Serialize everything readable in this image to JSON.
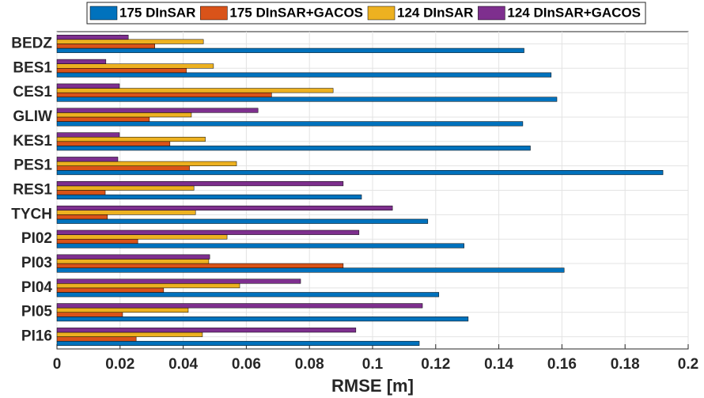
{
  "chart_data": {
    "type": "hbar",
    "xlabel": "RMSE [m]",
    "categories": [
      "BEDZ",
      "BES1",
      "CES1",
      "GLIW",
      "KES1",
      "PES1",
      "RES1",
      "TYCH",
      "PI02",
      "PI03",
      "PI04",
      "PI05",
      "PI16"
    ],
    "series": [
      {
        "name": "175 DInSAR",
        "color": "#0072bd",
        "values": [
          0.148,
          0.1566,
          0.1584,
          0.1476,
          0.15,
          0.192,
          0.0965,
          0.1175,
          0.129,
          0.1607,
          0.121,
          0.1303,
          0.1148
        ]
      },
      {
        "name": "175 DInSAR+GACOS",
        "color": "#d95319",
        "values": [
          0.031,
          0.041,
          0.068,
          0.0293,
          0.0358,
          0.042,
          0.0153,
          0.016,
          0.0256,
          0.0907,
          0.0338,
          0.0208,
          0.0251
        ]
      },
      {
        "name": "124 DInSAR",
        "color": "#edb120",
        "values": [
          0.0464,
          0.0496,
          0.0875,
          0.0426,
          0.047,
          0.0569,
          0.0434,
          0.0439,
          0.0539,
          0.0481,
          0.0579,
          0.0416,
          0.0461
        ]
      },
      {
        "name": "124 DInSAR+GACOS",
        "color": "#7e2f8e",
        "values": [
          0.0226,
          0.0155,
          0.0198,
          0.0637,
          0.0198,
          0.0193,
          0.0907,
          0.1063,
          0.0957,
          0.0484,
          0.0772,
          0.1158,
          0.0947
        ]
      }
    ],
    "xlim": [
      0,
      0.2
    ],
    "xticks": [
      0,
      0.02,
      0.04,
      0.06,
      0.08,
      0.1,
      0.12,
      0.14,
      0.16,
      0.18,
      0.2
    ],
    "grid": true,
    "legend": "top"
  }
}
